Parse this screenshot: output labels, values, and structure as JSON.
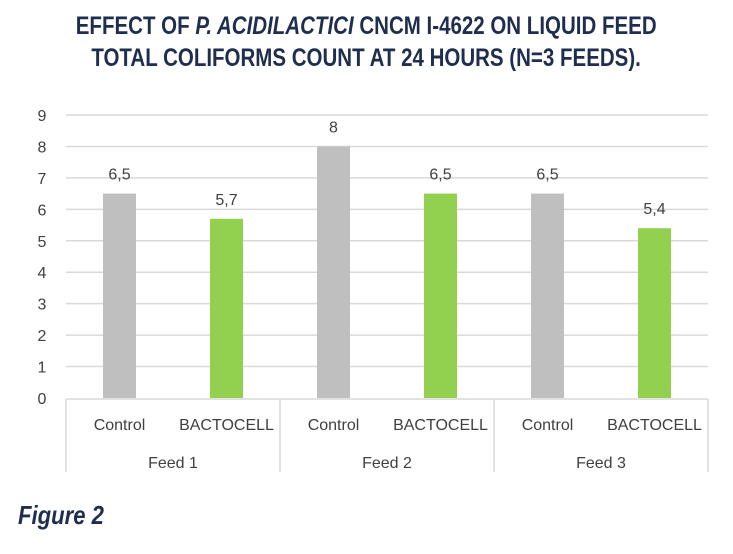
{
  "chart_data": {
    "type": "bar",
    "title_line1_a": "EFFECT OF ",
    "title_line1_italic": "P. ACIDILACTICI",
    "title_line1_b": " CNCM I-4622 ON LIQUID FEED",
    "title_line2": "TOTAL COLIFORMS COUNT AT 24 HOURS (N=3 FEEDS).",
    "caption": "Figure 2",
    "groups": [
      "Feed 1",
      "Feed 2",
      "Feed 3"
    ],
    "categories": [
      "Control",
      "BACTOCELL",
      "Control",
      "BACTOCELL",
      "Control",
      "BACTOCELL"
    ],
    "values": [
      6.5,
      5.7,
      8,
      6.5,
      6.5,
      5.4
    ],
    "data_labels": [
      "6,5",
      "5,7",
      "8",
      "6,5",
      "6,5",
      "5,4"
    ],
    "colors": {
      "Control": "#bfbfbf",
      "BACTOCELL": "#92d050"
    },
    "yticks": [
      "0",
      "1",
      "2",
      "3",
      "4",
      "5",
      "6",
      "7",
      "8",
      "9"
    ],
    "ylim": [
      0,
      9
    ],
    "grid": true,
    "xlabel": "",
    "ylabel": ""
  }
}
